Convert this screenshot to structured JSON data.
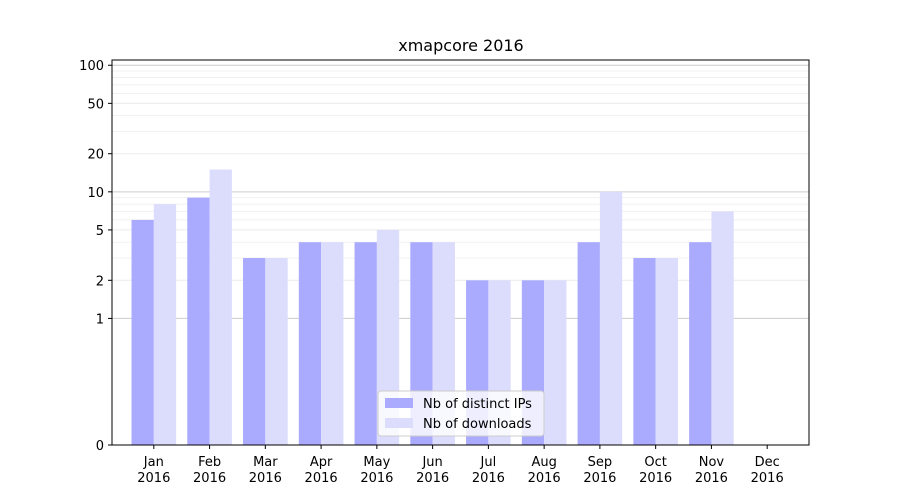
{
  "chart_data": {
    "type": "bar",
    "title": "xmapcore 2016",
    "xlabel": "",
    "ylabel": "",
    "y_scale": "symlog",
    "ylim": [
      0,
      110
    ],
    "y_ticks": [
      "0",
      "1",
      "2",
      "5",
      "10",
      "20",
      "50",
      "100"
    ],
    "categories": [
      [
        "Jan",
        "2016"
      ],
      [
        "Feb",
        "2016"
      ],
      [
        "Mar",
        "2016"
      ],
      [
        "Apr",
        "2016"
      ],
      [
        "May",
        "2016"
      ],
      [
        "Jun",
        "2016"
      ],
      [
        "Jul",
        "2016"
      ],
      [
        "Aug",
        "2016"
      ],
      [
        "Sep",
        "2016"
      ],
      [
        "Oct",
        "2016"
      ],
      [
        "Nov",
        "2016"
      ],
      [
        "Dec",
        "2016"
      ]
    ],
    "series": [
      {
        "name": "Nb of distinct IPs",
        "color": "#aaaaff",
        "values": [
          6,
          9,
          3,
          4,
          4,
          4,
          2,
          2,
          4,
          3,
          4,
          0
        ]
      },
      {
        "name": "Nb of downloads",
        "color": "#dcdcfc",
        "values": [
          8,
          15,
          3,
          4,
          5,
          4,
          2,
          2,
          10,
          3,
          7,
          0
        ]
      }
    ],
    "grid": true,
    "legend_position": "bottom-center"
  }
}
